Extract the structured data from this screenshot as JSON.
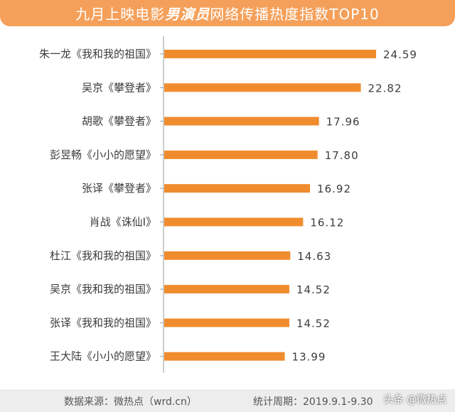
{
  "header": {
    "title_prefix": "九月上映电影",
    "title_emphasis": "男演员",
    "title_suffix": "网络传播热度指数TOP10"
  },
  "footer": {
    "source": "数据来源：微热点（wrd.cn）",
    "period": "统计周期：2019.9.1-9.30"
  },
  "watermark": {
    "text": "头条 @微热点"
  },
  "colors": {
    "banner": "#F5A05A",
    "bar": "#F08C2E",
    "footer_bg": "#EDEDED"
  },
  "chart_data": {
    "type": "bar",
    "orientation": "horizontal",
    "title": "九月上映电影男演员网络传播热度指数TOP10",
    "categories": [
      "朱一龙《我和我的祖国》",
      "吴京《攀登者》",
      "胡歌《攀登者》",
      "彭昱畅《小小的愿望》",
      "张译《攀登者》",
      "肖战《诛仙Ⅰ》",
      "杜江《我和我的祖国》",
      "吴京《我和我的祖国》",
      "张译《我和我的祖国》",
      "王大陆《小小的愿望》"
    ],
    "values": [
      24.59,
      22.82,
      17.96,
      17.8,
      16.92,
      16.12,
      14.63,
      14.52,
      14.52,
      13.99
    ],
    "value_labels": [
      "24.59",
      "22.82",
      "17.96",
      "17.80",
      "16.92",
      "16.12",
      "14.63",
      "14.52",
      "14.52",
      "13.99"
    ],
    "xlim": [
      0,
      24.59
    ],
    "grid": false,
    "legend": "none"
  }
}
